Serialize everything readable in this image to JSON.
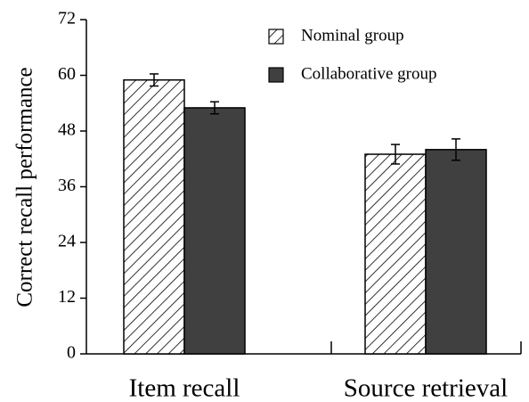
{
  "chart_data": {
    "type": "bar",
    "y_label": "Correct recall performance",
    "categories": [
      "Item recall",
      "Source retrieval"
    ],
    "series": [
      {
        "name": "Nominal group",
        "color": "#ffffff",
        "pattern": "hatch",
        "values": [
          59,
          43
        ],
        "errors": [
          1.3,
          2.1
        ]
      },
      {
        "name": "Collaborative group",
        "color": "#404040",
        "values": [
          53,
          44
        ],
        "errors": [
          1.3,
          2.3
        ]
      }
    ],
    "ylim": [
      0,
      72
    ],
    "yticks": [
      0,
      12,
      24,
      36,
      48,
      60,
      72
    ]
  }
}
